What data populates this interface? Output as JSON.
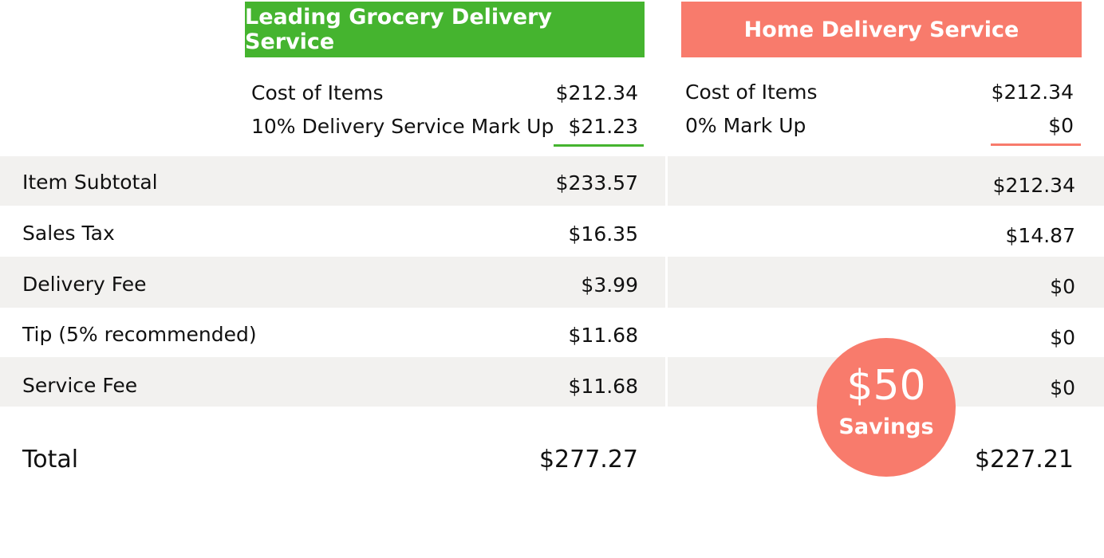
{
  "colors": {
    "leading_accent": "#45b42f",
    "home_accent": "#f87b6c",
    "row_band": "#f2f1ef"
  },
  "leading": {
    "title": "Leading Grocery Delivery Service",
    "cost_label": "Cost of Items",
    "cost_value": "$212.34",
    "markup_label": "10% Delivery Service Mark Up",
    "markup_value": "$21.23"
  },
  "home": {
    "title": "Home Delivery Service",
    "cost_label": "Cost of Items",
    "cost_value": "$212.34",
    "markup_label": "0% Mark Up",
    "markup_value": "$0"
  },
  "rows": [
    {
      "label": "Item Subtotal",
      "leading": "$233.57",
      "home": "$212.34"
    },
    {
      "label": "Sales Tax",
      "leading": "$16.35",
      "home": "$14.87"
    },
    {
      "label": "Delivery Fee",
      "leading": "$3.99",
      "home": "$0"
    },
    {
      "label": "Tip (5% recommended)",
      "leading": "$11.68",
      "home": "$0"
    },
    {
      "label": "Service Fee",
      "leading": "$11.68",
      "home": "$0"
    }
  ],
  "total": {
    "label": "Total",
    "leading": "$277.27",
    "home": "$227.21"
  },
  "savings": {
    "amount": "$50",
    "label": "Savings"
  }
}
